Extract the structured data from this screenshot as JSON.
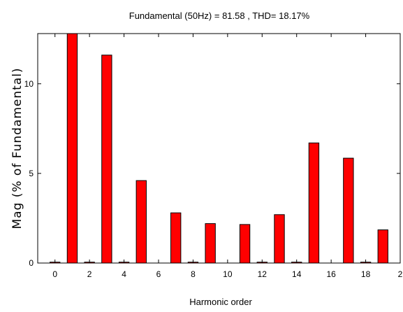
{
  "chart_data": {
    "type": "bar",
    "title": "Fundamental (50Hz) = 81.58 , THD= 18.17%",
    "xlabel": "Harmonic order",
    "ylabel": "Mag (% of Fundamental)",
    "x": [
      0,
      1,
      2,
      3,
      4,
      5,
      6,
      7,
      8,
      9,
      10,
      11,
      12,
      13,
      14,
      15,
      16,
      17,
      18,
      19
    ],
    "values": [
      0.05,
      12.9,
      0.05,
      11.6,
      0.05,
      4.6,
      0,
      2.8,
      0.05,
      2.2,
      0,
      2.15,
      0.05,
      2.7,
      0.05,
      6.7,
      0,
      5.85,
      0.05,
      1.85
    ],
    "xlim": [
      -1,
      20
    ],
    "ylim": [
      0,
      12.8
    ],
    "xticks": [
      "0",
      "2",
      "4",
      "6",
      "8",
      "10",
      "12",
      "14",
      "16",
      "18",
      "2"
    ],
    "yticks": [
      "0",
      "5",
      "10"
    ],
    "bar_color": "#ff0000",
    "bar_edge_color": "#000000",
    "grid": false
  }
}
